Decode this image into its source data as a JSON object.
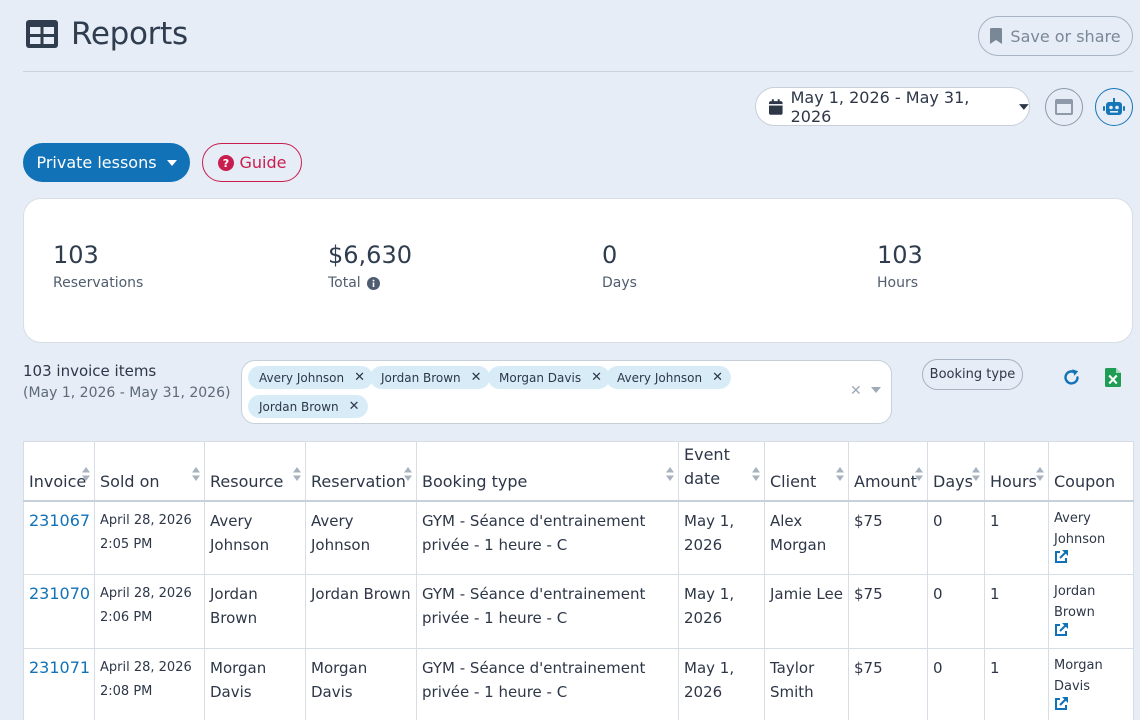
{
  "header": {
    "title": "Reports",
    "save_label": "Save or share"
  },
  "toolbar": {
    "date_range": "May 1, 2026 - May 31, 2026",
    "report_type": "Private lessons",
    "guide_label": "Guide"
  },
  "stats": [
    {
      "value": "103",
      "label": "Reservations"
    },
    {
      "value": "$6,630",
      "label": "Total"
    },
    {
      "value": "0",
      "label": "Days"
    },
    {
      "value": "103",
      "label": "Hours"
    }
  ],
  "results": {
    "count_label": "103 invoice items",
    "range_label": "(May 1, 2026 - May 31, 2026)"
  },
  "filter": {
    "chips": [
      "Avery Johnson",
      "Jordan Brown",
      "Morgan Davis",
      "Avery Johnson",
      "Jordan Brown"
    ],
    "booking_type_label": "Booking type"
  },
  "table": {
    "headers": [
      "Invoice",
      "Sold on",
      "Resource",
      "Reservation",
      "Booking type",
      "Event date",
      "Client",
      "Amount",
      "Days",
      "Hours",
      "Coupon"
    ],
    "rows": [
      {
        "invoice": "231067",
        "sold_on": "April 28, 2026 2:05 PM",
        "resource": "Avery Johnson",
        "reservation": "Avery Johnson",
        "booking_type": "GYM - Séance d'entrainement privée - 1 heure - C",
        "event_date": "May 1, 2026",
        "client": "Alex Morgan",
        "amount": "$75",
        "days": "0",
        "hours": "1",
        "coupon": "Avery Johnson"
      },
      {
        "invoice": "231070",
        "sold_on": "April 28, 2026 2:06 PM",
        "resource": "Jordan Brown",
        "reservation": "Jordan Brown",
        "booking_type": "GYM - Séance d'entrainement privée - 1 heure - C",
        "event_date": "May 1, 2026",
        "client": "Jamie Lee",
        "amount": "$75",
        "days": "0",
        "hours": "1",
        "coupon": "Jordan Brown"
      },
      {
        "invoice": "231071",
        "sold_on": "April 28, 2026 2:08 PM",
        "resource": "Morgan Davis",
        "reservation": "Morgan Davis",
        "booking_type": "GYM - Séance d'entrainement privée - 1 heure - C",
        "event_date": "May 1, 2026",
        "client": "Taylor Smith",
        "amount": "$75",
        "days": "0",
        "hours": "1",
        "coupon": "Morgan Davis"
      }
    ]
  },
  "icons": {
    "title": "table-grid-icon",
    "save": "bookmark-icon",
    "date": "calendar-icon",
    "view": "window-icon",
    "assistant": "robot-icon",
    "guide": "question-circle-icon",
    "total_info": "info-icon",
    "refresh": "refresh-icon",
    "export": "excel-icon",
    "coupon_link": "external-link-icon"
  },
  "colors": {
    "background": "#e6edf6",
    "primary": "#1172b8",
    "guide": "#c81e4f",
    "chip": "#d8ecf8",
    "excel": "#1f9d55"
  }
}
